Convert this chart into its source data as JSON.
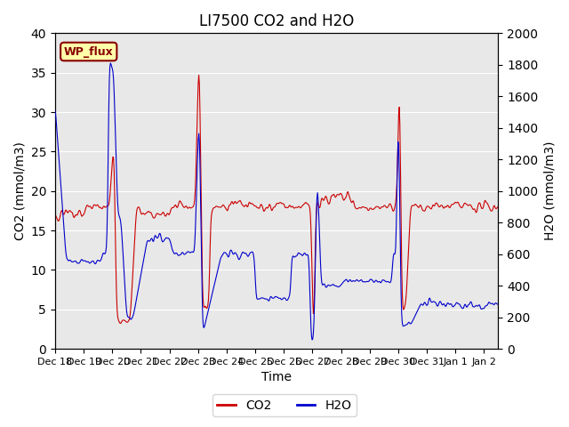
{
  "title": "LI7500 CO2 and H2O",
  "xlabel": "Time",
  "ylabel_left": "CO2 (mmol/m3)",
  "ylabel_right": "H2O (mmol/m3)",
  "ylim_left": [
    0,
    40
  ],
  "ylim_right": [
    0,
    2000
  ],
  "yticks_left": [
    0,
    5,
    10,
    15,
    20,
    25,
    30,
    35,
    40
  ],
  "yticks_right": [
    0,
    200,
    400,
    600,
    800,
    1000,
    1200,
    1400,
    1600,
    1800,
    2000
  ],
  "bg_color": "#e8e8e8",
  "co2_color": "#cc0000",
  "h2o_color": "#0000cc",
  "legend_co2": "CO2",
  "legend_h2o": "H2O",
  "watermark_text": "WP_flux",
  "watermark_bg": "#ffffaa",
  "watermark_border": "#880000"
}
